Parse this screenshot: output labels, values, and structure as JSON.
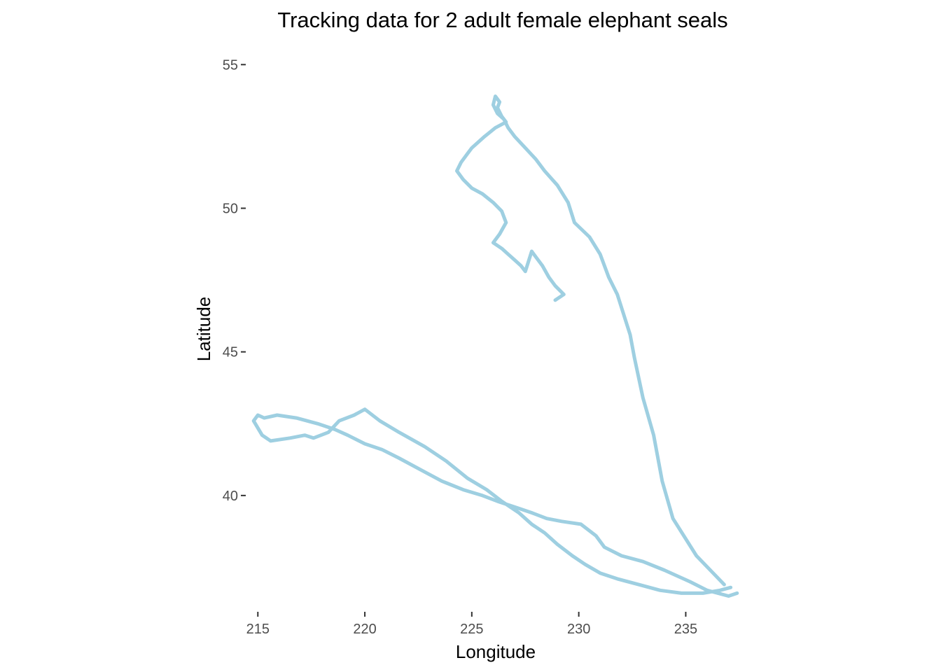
{
  "chart_data": {
    "type": "line",
    "title": "Tracking data for 2 adult female elephant seals",
    "xlabel": "Longitude",
    "ylabel": "Latitude",
    "xlim": [
      214.5,
      237.8
    ],
    "ylim": [
      36.0,
      55.3
    ],
    "x_ticks": [
      215,
      220,
      225,
      230,
      235
    ],
    "y_ticks": [
      40,
      45,
      50,
      55
    ],
    "grid": false,
    "legend": "none",
    "line_color": "#9ecfe1",
    "series": [
      {
        "x": [
          236.8,
          235.5,
          234.4,
          233.9,
          233.5,
          233.0,
          232.6,
          232.4,
          232.1,
          231.8,
          231.4,
          231.0,
          230.5,
          229.8,
          229.5,
          229.0,
          228.4,
          228.0,
          227.5,
          227.0,
          226.7,
          226.5,
          226.2,
          226.0,
          226.1,
          226.3,
          226.2,
          226.4,
          226.6,
          226.1,
          225.6,
          225.3,
          225.0,
          224.8,
          224.5,
          224.3,
          224.6,
          225.0,
          225.5,
          226.0,
          226.4,
          226.6,
          226.3,
          226.0,
          226.4,
          226.7,
          227.0,
          227.3,
          227.5,
          227.8,
          228.0,
          228.3,
          228.6,
          228.9,
          229.3,
          228.9
        ],
        "y": [
          36.9,
          37.9,
          39.2,
          40.5,
          42.1,
          43.4,
          44.8,
          45.6,
          46.3,
          47.0,
          47.6,
          48.4,
          49.0,
          49.5,
          50.2,
          50.8,
          51.3,
          51.7,
          52.1,
          52.5,
          52.8,
          53.1,
          53.3,
          53.6,
          53.9,
          53.7,
          53.5,
          53.2,
          53.0,
          52.8,
          52.5,
          52.3,
          52.1,
          51.9,
          51.6,
          51.3,
          51.0,
          50.7,
          50.5,
          50.2,
          49.9,
          49.5,
          49.1,
          48.8,
          48.6,
          48.4,
          48.2,
          48.0,
          47.8,
          48.5,
          48.3,
          48.0,
          47.6,
          47.3,
          47.0,
          46.8
        ]
      },
      {
        "x": [
          237.4,
          237.0,
          236.0,
          235.2,
          234.0,
          233.0,
          232.0,
          231.2,
          230.8,
          230.1,
          229.2,
          228.5,
          227.8,
          227.0,
          226.2,
          225.5,
          224.6,
          223.6,
          222.6,
          221.6,
          220.8,
          220.0,
          219.2,
          218.6,
          217.8,
          216.8,
          215.9,
          215.3,
          215.0,
          214.8,
          215.2,
          215.6,
          216.5,
          217.2,
          217.6,
          218.3,
          218.8,
          219.5,
          220.0,
          220.7,
          221.6,
          222.8,
          223.8,
          224.8,
          225.7,
          226.4,
          227.2,
          227.8,
          228.4,
          229.0,
          229.7,
          230.3,
          231.0,
          231.8,
          232.8,
          233.8,
          234.8,
          235.8,
          236.6,
          237.1
        ],
        "y": [
          36.6,
          36.5,
          36.7,
          37.0,
          37.4,
          37.7,
          37.9,
          38.2,
          38.6,
          39.0,
          39.1,
          39.2,
          39.4,
          39.6,
          39.8,
          40.0,
          40.2,
          40.5,
          40.9,
          41.3,
          41.6,
          41.8,
          42.1,
          42.3,
          42.5,
          42.7,
          42.8,
          42.7,
          42.8,
          42.6,
          42.1,
          41.9,
          42.0,
          42.1,
          42.0,
          42.2,
          42.6,
          42.8,
          43.0,
          42.6,
          42.2,
          41.7,
          41.2,
          40.6,
          40.2,
          39.8,
          39.4,
          39.0,
          38.7,
          38.3,
          37.9,
          37.6,
          37.3,
          37.1,
          36.9,
          36.7,
          36.6,
          36.6,
          36.7,
          36.8
        ]
      }
    ]
  }
}
